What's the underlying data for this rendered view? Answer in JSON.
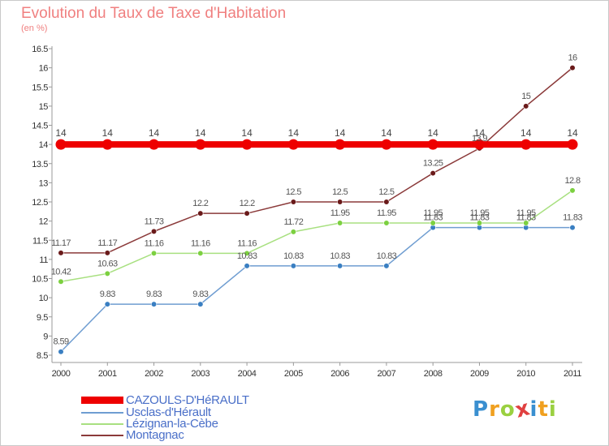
{
  "chart_data": {
    "type": "line",
    "title": "Evolution du Taux de Taxe d'Habitation",
    "subtitle": "(en %)",
    "xlabel": "",
    "ylabel": "",
    "x": [
      "2000",
      "2001",
      "2002",
      "2003",
      "2004",
      "2005",
      "2006",
      "2007",
      "2008",
      "2009",
      "2010",
      "2011"
    ],
    "ylim": [
      8.5,
      16.5
    ],
    "yticks": [
      "8.5",
      "9",
      "9.5",
      "10",
      "10.5",
      "11",
      "11.5",
      "12",
      "12.5",
      "13",
      "13.5",
      "14",
      "14.5",
      "15",
      "15.5",
      "16",
      "16.5"
    ],
    "grid": false,
    "legend_position": "bottom-left",
    "series": [
      {
        "name": "CAZOULS-D'HéRAULT",
        "color": "#ee0000",
        "values": [
          14,
          14,
          14,
          14,
          14,
          14,
          14,
          14,
          14,
          14,
          14,
          14
        ],
        "labels": [
          "14",
          "14",
          "14",
          "14",
          "14",
          "14",
          "14",
          "14",
          "14",
          "14",
          "14",
          "14"
        ]
      },
      {
        "name": "Usclas-d'Hérault",
        "color": "#6f9dd1",
        "marker": "#3a7fc2",
        "values": [
          8.59,
          9.83,
          9.83,
          9.83,
          10.83,
          10.83,
          10.83,
          10.83,
          11.83,
          11.83,
          11.83,
          11.83
        ],
        "labels": [
          "8.59",
          "9.83",
          "9.83",
          "9.83",
          "10.83",
          "10.83",
          "10.83",
          "10.83",
          "11.83",
          "11.83",
          "11.83",
          "11.83"
        ]
      },
      {
        "name": "Lézignan-la-Cèbe",
        "color": "#a8e080",
        "marker": "#7cd040",
        "values": [
          10.42,
          10.63,
          11.16,
          11.16,
          11.16,
          11.72,
          11.95,
          11.95,
          11.95,
          11.95,
          11.95,
          12.8
        ],
        "labels": [
          "10.42",
          "10.63",
          "11.16",
          "11.16",
          "11.16",
          "11.72",
          "11.95",
          "11.95",
          "11.95",
          "11.95",
          "11.95",
          "12.8"
        ]
      },
      {
        "name": "Montagnac",
        "color": "#8b3a3a",
        "marker": "#6a1a1a",
        "values": [
          11.17,
          11.17,
          11.73,
          12.2,
          12.2,
          12.5,
          12.5,
          12.5,
          13.25,
          13.9,
          15,
          16
        ],
        "labels": [
          "11.17",
          "11.17",
          "11.73",
          "12.2",
          "12.2",
          "12.5",
          "12.5",
          "12.5",
          "13.25",
          "13.9",
          "15",
          "16"
        ]
      }
    ]
  },
  "logo": {
    "letters": [
      "P",
      "r",
      "o",
      "x",
      "i",
      "t",
      "i"
    ],
    "colors": [
      "#3a8fd0",
      "#f0a020",
      "#9ad040",
      "#e04040",
      "#3a8fd0",
      "#f0a020",
      "#9ad040"
    ]
  }
}
